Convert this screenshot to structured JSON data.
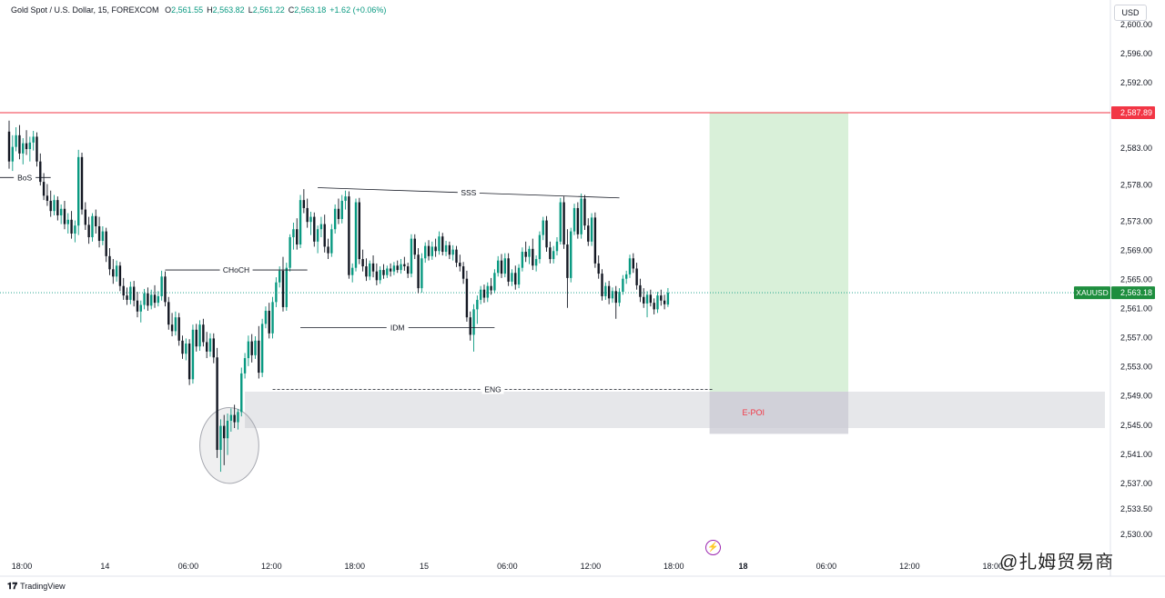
{
  "header": {
    "symbol_desc": "Gold Spot / U.S. Dollar, 15, FOREXCOM",
    "ohlc": [
      {
        "k": "O",
        "v": "2,561.55"
      },
      {
        "k": "H",
        "v": "2,563.82"
      },
      {
        "k": "L",
        "v": "2,561.22"
      },
      {
        "k": "C",
        "v": "2,563.18"
      },
      {
        "k": "",
        "v": "+1.62 (+0.06%)"
      }
    ]
  },
  "currency_label": "USD",
  "branding": "TradingView",
  "watermark": "@扎姆贸易商",
  "event_icon": "lightning-icon",
  "colors": {
    "up": "#089981",
    "down": "#131722",
    "resistance": "#f23645",
    "price_tag": "#1e8e3e",
    "target_zone": "#d9f0d9",
    "poi_zone": "#e6e7ea"
  },
  "chart_data": {
    "type": "candlestick",
    "title": "",
    "ylabel": "",
    "xlabel": "",
    "ylim": [
      2528.5,
      2602.2
    ],
    "y_ticks": [
      "2,600.00",
      "2,596.00",
      "2,592.00",
      "2,583.00",
      "2,578.00",
      "2,573.00",
      "2,569.00",
      "2,565.00",
      "2,561.00",
      "2,557.00",
      "2,553.00",
      "2,549.00",
      "2,545.00",
      "2,541.00",
      "2,537.00",
      "2,533.50",
      "2,530.00"
    ],
    "y_tick_values": [
      2600,
      2596,
      2592,
      2583,
      2578,
      2573,
      2569,
      2565,
      2561,
      2557,
      2553,
      2549,
      2545,
      2541,
      2537,
      2533.5,
      2530
    ],
    "x_ticks": [
      {
        "label": "18:00",
        "t": 0,
        "bold": false
      },
      {
        "label": "14",
        "t": 24,
        "bold": false
      },
      {
        "label": "06:00",
        "t": 48,
        "bold": false
      },
      {
        "label": "12:00",
        "t": 72,
        "bold": false
      },
      {
        "label": "18:00",
        "t": 96,
        "bold": false
      },
      {
        "label": "15",
        "t": 116,
        "bold": false
      },
      {
        "label": "06:00",
        "t": 140,
        "bold": false
      },
      {
        "label": "12:00",
        "t": 164,
        "bold": false
      },
      {
        "label": "18:00",
        "t": 188,
        "bold": false
      },
      {
        "label": "18",
        "t": 208,
        "bold": true
      },
      {
        "label": "06:00",
        "t": 232,
        "bold": false
      },
      {
        "label": "12:00",
        "t": 256,
        "bold": false
      },
      {
        "label": "18:00",
        "t": 280,
        "bold": false
      }
    ],
    "grid": false,
    "candles": [
      [
        2585.3,
        2586.8,
        2580.2,
        2581.2
      ],
      [
        2581.2,
        2584.8,
        2579.9,
        2583.2
      ],
      [
        2583.2,
        2585.9,
        2582.6,
        2584.8
      ],
      [
        2584.8,
        2586.2,
        2581.5,
        2582.3
      ],
      [
        2582.3,
        2584.4,
        2580.8,
        2583.7
      ],
      [
        2583.7,
        2585.5,
        2582.1,
        2582.9
      ],
      [
        2582.9,
        2584.6,
        2581.2,
        2583.8
      ],
      [
        2583.8,
        2585.4,
        2582.7,
        2584.6
      ],
      [
        2584.6,
        2585.2,
        2580.5,
        2581.2
      ],
      [
        2581.2,
        2582.3,
        2577.9,
        2578.4
      ],
      [
        2578.4,
        2579.6,
        2575.9,
        2576.5
      ],
      [
        2576.5,
        2578.1,
        2575.1,
        2575.8
      ],
      [
        2575.8,
        2577.2,
        2573.6,
        2574.4
      ],
      [
        2574.4,
        2576.6,
        2573.8,
        2575.9
      ],
      [
        2575.9,
        2576.4,
        2573.1,
        2573.8
      ],
      [
        2573.8,
        2575.3,
        2572.6,
        2574.7
      ],
      [
        2574.7,
        2575.8,
        2571.9,
        2572.6
      ],
      [
        2572.6,
        2574.1,
        2571.3,
        2573.2
      ],
      [
        2573.2,
        2574.4,
        2570.6,
        2571.3
      ],
      [
        2571.3,
        2573.1,
        2570.1,
        2572.4
      ],
      [
        2572.4,
        2582.8,
        2571.1,
        2581.8
      ],
      [
        2581.8,
        2582.4,
        2573.9,
        2574.6
      ],
      [
        2574.6,
        2575.6,
        2571.8,
        2572.5
      ],
      [
        2572.5,
        2573.6,
        2569.9,
        2570.8
      ],
      [
        2570.8,
        2574.1,
        2570.2,
        2573.7
      ],
      [
        2573.7,
        2574.6,
        2571.3,
        2572.3
      ],
      [
        2572.3,
        2573.6,
        2569.4,
        2570.3
      ],
      [
        2570.3,
        2572.3,
        2569.7,
        2571.6
      ],
      [
        2571.6,
        2572.1,
        2567.4,
        2568.2
      ],
      [
        2568.2,
        2569.3,
        2565.6,
        2566.4
      ],
      [
        2566.4,
        2567.8,
        2564.4,
        2565.4
      ],
      [
        2565.4,
        2567.6,
        2564.7,
        2566.9
      ],
      [
        2566.9,
        2567.4,
        2563.4,
        2564.1
      ],
      [
        2564.1,
        2565.2,
        2562.2,
        2562.8
      ],
      [
        2562.8,
        2563.9,
        2561.5,
        2562.2
      ],
      [
        2562.2,
        2564.7,
        2561.6,
        2564.0
      ],
      [
        2564.0,
        2564.8,
        2561.3,
        2562.1
      ],
      [
        2562.1,
        2563.3,
        2559.8,
        2560.6
      ],
      [
        2560.6,
        2562.1,
        2559.1,
        2561.5
      ],
      [
        2561.5,
        2563.7,
        2560.9,
        2563.1
      ],
      [
        2563.1,
        2563.9,
        2560.7,
        2561.4
      ],
      [
        2561.4,
        2563.6,
        2560.9,
        2562.9
      ],
      [
        2562.9,
        2564.2,
        2561.1,
        2561.8
      ],
      [
        2561.8,
        2563.4,
        2561.3,
        2562.7
      ],
      [
        2562.7,
        2566.2,
        2562.1,
        2565.4
      ],
      [
        2565.4,
        2566.1,
        2561.3,
        2561.9
      ],
      [
        2561.9,
        2562.6,
        2558.1,
        2558.8
      ],
      [
        2558.8,
        2560.4,
        2557.2,
        2557.9
      ],
      [
        2557.9,
        2560.6,
        2557.3,
        2559.8
      ],
      [
        2559.8,
        2560.4,
        2555.9,
        2556.6
      ],
      [
        2556.6,
        2557.3,
        2554.1,
        2554.8
      ],
      [
        2554.8,
        2556.9,
        2553.9,
        2556.2
      ],
      [
        2556.2,
        2556.8,
        2550.5,
        2551.3
      ],
      [
        2551.3,
        2558.8,
        2550.7,
        2558.1
      ],
      [
        2558.1,
        2558.9,
        2555.1,
        2555.8
      ],
      [
        2555.8,
        2559.4,
        2555.2,
        2558.8
      ],
      [
        2558.8,
        2559.6,
        2555.8,
        2556.4
      ],
      [
        2556.4,
        2557.8,
        2554.2,
        2555.1
      ],
      [
        2555.1,
        2557.6,
        2554.4,
        2556.9
      ],
      [
        2556.9,
        2557.6,
        2553.5,
        2554.3
      ],
      [
        2554.3,
        2555.6,
        2540.5,
        2541.6
      ],
      [
        2541.6,
        2545.8,
        2538.6,
        2544.9
      ],
      [
        2544.9,
        2546.4,
        2539.5,
        2543.2
      ],
      [
        2543.2,
        2546.6,
        2540.9,
        2545.6
      ],
      [
        2545.6,
        2547.3,
        2544.1,
        2546.4
      ],
      [
        2546.4,
        2547.8,
        2544.6,
        2545.4
      ],
      [
        2545.4,
        2547.2,
        2544.4,
        2546.8
      ],
      [
        2546.8,
        2552.9,
        2546.2,
        2552.1
      ],
      [
        2552.1,
        2554.9,
        2551.4,
        2554.2
      ],
      [
        2554.2,
        2557.3,
        2553.1,
        2556.5
      ],
      [
        2556.5,
        2557.5,
        2553.6,
        2554.6
      ],
      [
        2554.6,
        2557.2,
        2554.1,
        2556.6
      ],
      [
        2556.6,
        2558.6,
        2551.4,
        2552.2
      ],
      [
        2552.2,
        2559.6,
        2551.6,
        2558.9
      ],
      [
        2558.9,
        2561.3,
        2558.3,
        2560.7
      ],
      [
        2560.7,
        2561.8,
        2556.9,
        2557.6
      ],
      [
        2557.6,
        2562.6,
        2556.9,
        2561.9
      ],
      [
        2561.9,
        2565.3,
        2561.2,
        2564.6
      ],
      [
        2564.6,
        2566.8,
        2563.9,
        2566.2
      ],
      [
        2566.2,
        2568.1,
        2560.6,
        2561.2
      ],
      [
        2561.2,
        2567.3,
        2560.7,
        2566.6
      ],
      [
        2566.6,
        2571.2,
        2566.1,
        2570.8
      ],
      [
        2570.8,
        2572.8,
        2569.1,
        2571.9
      ],
      [
        2571.9,
        2573.4,
        2569.1,
        2569.8
      ],
      [
        2569.8,
        2576.6,
        2569.3,
        2575.9
      ],
      [
        2575.9,
        2577.4,
        2574.1,
        2574.8
      ],
      [
        2574.8,
        2576.1,
        2572.1,
        2572.9
      ],
      [
        2572.9,
        2574.3,
        2571.1,
        2573.6
      ],
      [
        2573.6,
        2574.2,
        2569.5,
        2570.2
      ],
      [
        2570.2,
        2572.4,
        2568.6,
        2571.9
      ],
      [
        2571.9,
        2573.6,
        2570.8,
        2572.6
      ],
      [
        2572.6,
        2573.9,
        2568.7,
        2569.5
      ],
      [
        2569.5,
        2570.6,
        2567.8,
        2568.6
      ],
      [
        2568.6,
        2572.6,
        2568.1,
        2571.9
      ],
      [
        2571.9,
        2575.3,
        2571.3,
        2574.7
      ],
      [
        2574.7,
        2576.1,
        2572.6,
        2573.3
      ],
      [
        2573.3,
        2576.6,
        2572.7,
        2575.8
      ],
      [
        2575.8,
        2577.2,
        2574.6,
        2576.4
      ],
      [
        2576.4,
        2577.1,
        2565.1,
        2565.6
      ],
      [
        2565.6,
        2567.2,
        2564.6,
        2566.6
      ],
      [
        2566.6,
        2576.1,
        2566.1,
        2575.6
      ],
      [
        2575.6,
        2576.2,
        2567.1,
        2567.8
      ],
      [
        2567.8,
        2569.1,
        2566.1,
        2566.8
      ],
      [
        2566.8,
        2567.9,
        2564.8,
        2565.4
      ],
      [
        2565.4,
        2567.6,
        2564.9,
        2567.2
      ],
      [
        2567.2,
        2568.3,
        2565.3,
        2566.1
      ],
      [
        2566.1,
        2567.2,
        2564.2,
        2564.9
      ],
      [
        2564.9,
        2566.8,
        2564.4,
        2566.3
      ],
      [
        2566.3,
        2567.1,
        2565.1,
        2565.6
      ],
      [
        2565.6,
        2566.9,
        2565.2,
        2566.5
      ],
      [
        2566.5,
        2567.2,
        2565.4,
        2566.1
      ],
      [
        2566.1,
        2567.4,
        2565.6,
        2566.9
      ],
      [
        2566.9,
        2567.6,
        2565.9,
        2566.3
      ],
      [
        2566.3,
        2567.8,
        2565.8,
        2567.1
      ],
      [
        2567.1,
        2568.1,
        2566.2,
        2566.8
      ],
      [
        2566.8,
        2567.3,
        2565.2,
        2565.8
      ],
      [
        2565.8,
        2571.2,
        2565.3,
        2570.6
      ],
      [
        2570.6,
        2571.2,
        2567.8,
        2568.4
      ],
      [
        2568.4,
        2569.3,
        2563.1,
        2563.8
      ],
      [
        2563.8,
        2568.6,
        2563.2,
        2567.9
      ],
      [
        2567.9,
        2570.1,
        2567.3,
        2569.6
      ],
      [
        2569.6,
        2570.4,
        2567.6,
        2568.2
      ],
      [
        2568.2,
        2570.2,
        2567.7,
        2569.5
      ],
      [
        2569.5,
        2570.6,
        2568.1,
        2568.9
      ],
      [
        2568.9,
        2571.6,
        2568.4,
        2570.9
      ],
      [
        2570.9,
        2571.4,
        2568.3,
        2568.8
      ],
      [
        2568.8,
        2570.3,
        2568.2,
        2569.7
      ],
      [
        2569.7,
        2570.2,
        2567.8,
        2568.4
      ],
      [
        2568.4,
        2569.7,
        2567.6,
        2569.1
      ],
      [
        2569.1,
        2569.6,
        2566.7,
        2567.3
      ],
      [
        2567.3,
        2568.4,
        2566.1,
        2566.8
      ],
      [
        2566.8,
        2567.4,
        2564.4,
        2565.1
      ],
      [
        2565.1,
        2566.2,
        2559.2,
        2559.8
      ],
      [
        2559.8,
        2560.6,
        2556.6,
        2557.4
      ],
      [
        2557.4,
        2561.6,
        2555.1,
        2560.9
      ],
      [
        2560.9,
        2562.8,
        2558.9,
        2562.2
      ],
      [
        2562.2,
        2564.1,
        2561.6,
        2563.6
      ],
      [
        2563.6,
        2564.3,
        2561.8,
        2562.5
      ],
      [
        2562.5,
        2564.6,
        2561.9,
        2564.1
      ],
      [
        2564.1,
        2565.2,
        2562.9,
        2563.5
      ],
      [
        2563.5,
        2566.4,
        2563.1,
        2565.9
      ],
      [
        2565.9,
        2568.2,
        2565.4,
        2567.6
      ],
      [
        2567.6,
        2568.5,
        2565.2,
        2565.8
      ],
      [
        2565.8,
        2568.6,
        2565.3,
        2567.9
      ],
      [
        2567.9,
        2568.6,
        2564.1,
        2564.7
      ],
      [
        2564.7,
        2566.4,
        2564.1,
        2565.9
      ],
      [
        2565.9,
        2566.9,
        2563.6,
        2564.3
      ],
      [
        2564.3,
        2567.1,
        2563.8,
        2566.6
      ],
      [
        2566.6,
        2569.4,
        2566.1,
        2568.8
      ],
      [
        2568.8,
        2570.2,
        2567.4,
        2568.1
      ],
      [
        2568.1,
        2569.6,
        2567.1,
        2569.2
      ],
      [
        2569.2,
        2570.6,
        2566.3,
        2566.9
      ],
      [
        2566.9,
        2568.3,
        2566.1,
        2567.8
      ],
      [
        2567.8,
        2571.6,
        2567.2,
        2571.1
      ],
      [
        2571.1,
        2573.6,
        2570.4,
        2573.1
      ],
      [
        2573.1,
        2573.7,
        2568.8,
        2569.4
      ],
      [
        2569.4,
        2570.2,
        2567.2,
        2567.8
      ],
      [
        2567.8,
        2569.6,
        2567.2,
        2568.9
      ],
      [
        2568.9,
        2570.8,
        2568.3,
        2570.2
      ],
      [
        2570.2,
        2576.2,
        2569.8,
        2575.6
      ],
      [
        2575.6,
        2576.4,
        2569.2,
        2569.8
      ],
      [
        2569.8,
        2571.9,
        2561.1,
        2565.2
      ],
      [
        2565.2,
        2572.1,
        2564.6,
        2571.6
      ],
      [
        2571.6,
        2575.4,
        2571.1,
        2574.8
      ],
      [
        2574.8,
        2575.6,
        2570.6,
        2571.2
      ],
      [
        2571.2,
        2576.8,
        2570.6,
        2576.1
      ],
      [
        2576.1,
        2576.6,
        2571.8,
        2572.4
      ],
      [
        2572.4,
        2573.4,
        2569.6,
        2570.2
      ],
      [
        2570.2,
        2574.1,
        2569.6,
        2573.5
      ],
      [
        2573.5,
        2574.2,
        2566.6,
        2567.2
      ],
      [
        2567.2,
        2568.3,
        2565.1,
        2565.8
      ],
      [
        2565.8,
        2566.4,
        2562.1,
        2562.7
      ],
      [
        2562.7,
        2564.6,
        2562.2,
        2564.1
      ],
      [
        2564.1,
        2564.8,
        2561.6,
        2562.4
      ],
      [
        2562.4,
        2563.9,
        2561.8,
        2563.4
      ],
      [
        2563.4,
        2564.1,
        2559.6,
        2561.8
      ],
      [
        2561.8,
        2563.8,
        2561.3,
        2563.3
      ],
      [
        2563.3,
        2565.6,
        2562.9,
        2565.1
      ],
      [
        2565.1,
        2566.2,
        2564.4,
        2565.7
      ],
      [
        2565.7,
        2568.4,
        2565.2,
        2567.9
      ],
      [
        2567.9,
        2568.6,
        2565.9,
        2566.5
      ],
      [
        2566.5,
        2567.3,
        2563.6,
        2564.2
      ],
      [
        2564.2,
        2565.1,
        2561.9,
        2562.6
      ],
      [
        2562.6,
        2563.8,
        2561.1,
        2561.7
      ],
      [
        2561.7,
        2563.4,
        2559.8,
        2562.9
      ],
      [
        2562.9,
        2563.6,
        2561.3,
        2561.8
      ],
      [
        2561.8,
        2562.4,
        2560.2,
        2560.9
      ],
      [
        2560.9,
        2563.3,
        2560.4,
        2562.8
      ],
      [
        2562.8,
        2563.6,
        2561.4,
        2562.1
      ],
      [
        2562.1,
        2562.9,
        2560.9,
        2561.6
      ],
      [
        2561.55,
        2563.82,
        2561.22,
        2563.18
      ]
    ],
    "horizontal_levels": [
      {
        "price": 2587.89,
        "label": "2,587.89",
        "style": "resistance"
      },
      {
        "price": 2563.18,
        "label": "2,563.18",
        "style": "current",
        "symbol": "XAUUSD"
      }
    ],
    "annotations": [
      {
        "text": "BoS",
        "price": 2579.0,
        "t1": -3,
        "t2": 12
      },
      {
        "text": "CHoCH",
        "price": 2566.3,
        "t1": 45,
        "t2": 86
      },
      {
        "text": "IDM",
        "price": 2558.4,
        "t1": 84,
        "t2": 140
      },
      {
        "text": "SSS",
        "price_start": 2577.6,
        "price_end": 2576.2,
        "t1": 89,
        "t2": 176
      },
      {
        "text": "ENG",
        "price": 2549.9,
        "t1": 76,
        "t2": 203,
        "dashed": true
      }
    ],
    "zones": [
      {
        "name": "poi",
        "label": "",
        "t1": 68,
        "t2": 316,
        "price_top": 2549.6,
        "price_bottom": 2544.6
      },
      {
        "name": "target",
        "label": "",
        "t1": 202,
        "t2": 242,
        "price_top": 2587.89,
        "price_bottom": 2549.6
      },
      {
        "name": "e-poi",
        "label": "E-POI",
        "t1": 202,
        "t2": 242,
        "price_top": 2549.6,
        "price_bottom": 2543.8
      }
    ],
    "ellipse": {
      "t_center": 63.5,
      "price_center": 2542.2,
      "t_radius": 8.5,
      "price_radius": 5.2
    }
  }
}
